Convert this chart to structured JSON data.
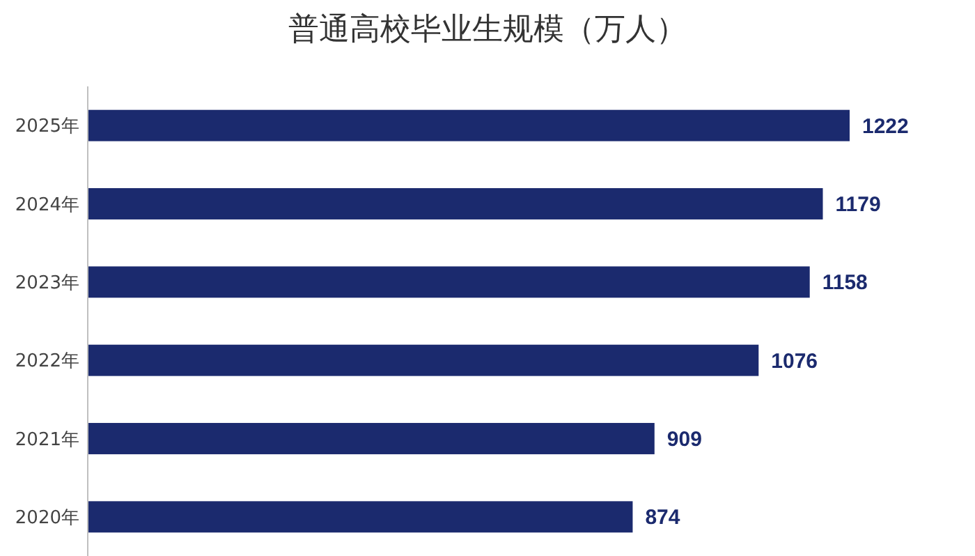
{
  "chart_data": {
    "type": "bar",
    "orientation": "horizontal",
    "title": "普通高校毕业生规模（万人）",
    "categories": [
      "2025年",
      "2024年",
      "2023年",
      "2022年",
      "2021年",
      "2020年"
    ],
    "series": [
      {
        "color": "#1b2a6e",
        "values": [
          1222,
          1179,
          1158,
          1076,
          909,
          874
        ]
      }
    ],
    "data_labels": true
  }
}
